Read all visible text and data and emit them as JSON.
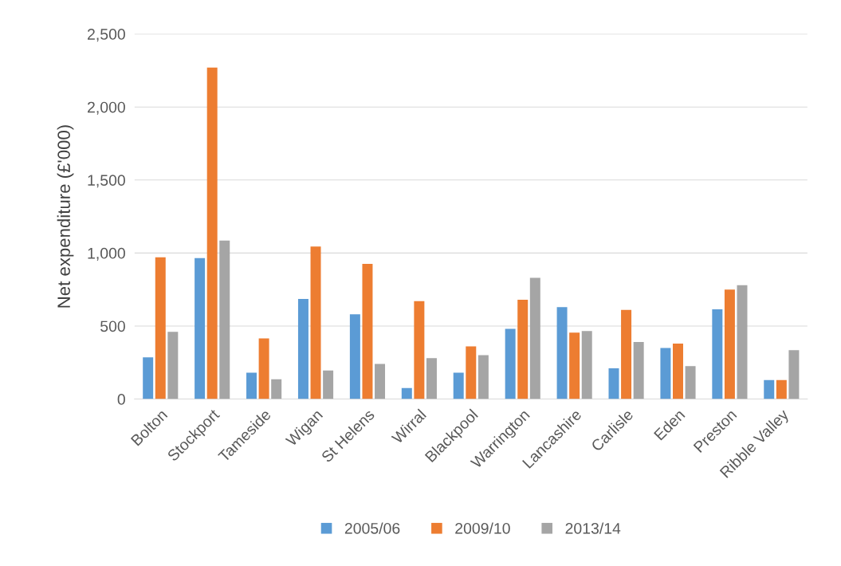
{
  "chart_data": {
    "type": "bar",
    "ylabel": "Net expenditure (£'000)",
    "categories": [
      "Bolton",
      "Stockport",
      "Tameside",
      "Wigan",
      "St Helens",
      "Wirral",
      "Blackpool",
      "Warrington",
      "Lancashire",
      "Carlisle",
      "Eden",
      "Preston",
      "Ribble Valley"
    ],
    "series": [
      {
        "name": "2005/06",
        "color": "#5b9bd5",
        "values": [
          285,
          965,
          180,
          685,
          580,
          75,
          180,
          480,
          630,
          210,
          350,
          615,
          130
        ]
      },
      {
        "name": "2009/10",
        "color": "#ed7d31",
        "values": [
          970,
          2270,
          415,
          1045,
          925,
          670,
          360,
          680,
          455,
          610,
          380,
          750,
          130
        ]
      },
      {
        "name": "2013/14",
        "color": "#a5a5a5",
        "values": [
          460,
          1085,
          135,
          195,
          240,
          280,
          300,
          830,
          465,
          390,
          225,
          780,
          335
        ]
      }
    ],
    "ylim": [
      0,
      2500
    ],
    "yticks": [
      0,
      500,
      {
        "value": 1000,
        "label": "1,000"
      },
      {
        "value": 1500,
        "label": "1,500"
      },
      {
        "value": 2000,
        "label": "2,000"
      },
      {
        "value": 2500,
        "label": "2,500"
      }
    ],
    "grid": "y",
    "legend": "bottom"
  }
}
